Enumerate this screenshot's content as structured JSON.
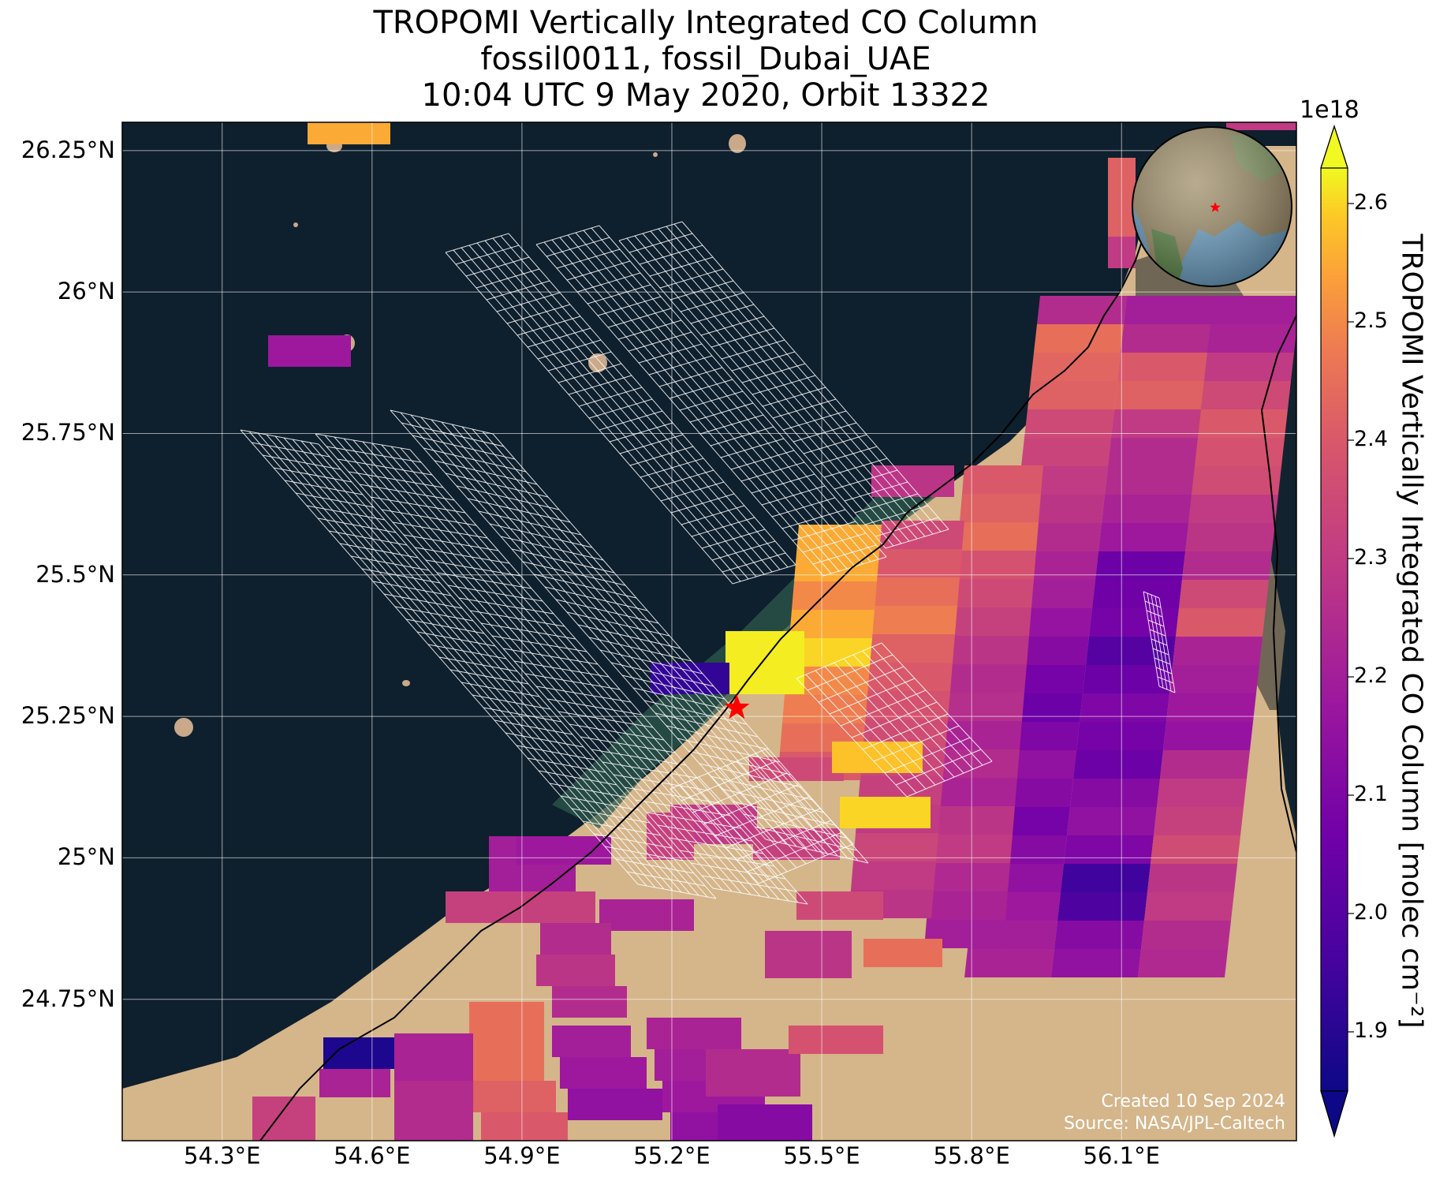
{
  "title": {
    "line1": "TROPOMI Vertically Integrated CO Column",
    "line2": "fossil0011, fossil_Dubai_UAE",
    "line3": "10:04 UTC 9 May 2020, Orbit 13322"
  },
  "map": {
    "lon_range": [
      54.1,
      56.45
    ],
    "lat_range": [
      24.5,
      26.3
    ],
    "grid": true,
    "lat_ticks": [
      {
        "value": 26.25,
        "label": "26.25°N"
      },
      {
        "value": 26.0,
        "label": "26°N"
      },
      {
        "value": 25.75,
        "label": "25.75°N"
      },
      {
        "value": 25.5,
        "label": "25.5°N"
      },
      {
        "value": 25.25,
        "label": "25.25°N"
      },
      {
        "value": 25.0,
        "label": "25°N"
      },
      {
        "value": 24.75,
        "label": "24.75°N"
      }
    ],
    "lon_ticks": [
      {
        "value": 54.3,
        "label": "54.3°E"
      },
      {
        "value": 54.6,
        "label": "54.6°E"
      },
      {
        "value": 54.9,
        "label": "54.9°E"
      },
      {
        "value": 55.2,
        "label": "55.2°E"
      },
      {
        "value": 55.5,
        "label": "55.5°E"
      },
      {
        "value": 55.8,
        "label": "55.8°E"
      },
      {
        "value": 56.1,
        "label": "56.1°E"
      }
    ],
    "site_marker": {
      "lon": 55.33,
      "lat": 25.265,
      "color": "#ff0000",
      "icon": "red-star"
    },
    "background": {
      "sea": "#0e1f2d",
      "desert": "#d9b990",
      "mountains": "#6f6656",
      "coast_green": "#2d5a4a"
    }
  },
  "colorbar": {
    "label": "TROPOMI Vertically Integrated CO Column [molec cm$^{-2}$]",
    "label_display": "TROPOMI Vertically Integrated CO Column [molec cm⁻²]",
    "exponent": "1e18",
    "min": 1.85,
    "max": 2.63,
    "colormap": "plasma",
    "extend": "both",
    "ticks": [
      {
        "value": 1.9,
        "label": "1.9"
      },
      {
        "value": 2.0,
        "label": "2.0"
      },
      {
        "value": 2.1,
        "label": "2.1"
      },
      {
        "value": 2.2,
        "label": "2.2"
      },
      {
        "value": 2.3,
        "label": "2.3"
      },
      {
        "value": 2.4,
        "label": "2.4"
      },
      {
        "value": 2.5,
        "label": "2.5"
      },
      {
        "value": 2.6,
        "label": "2.6"
      }
    ]
  },
  "credits": {
    "created": "Created 10 Sep 2024",
    "source": "Source: NASA/JPL-Caltech"
  },
  "inset_globe": {
    "icon": "globe-inset",
    "marker_color": "#ff0000"
  }
}
